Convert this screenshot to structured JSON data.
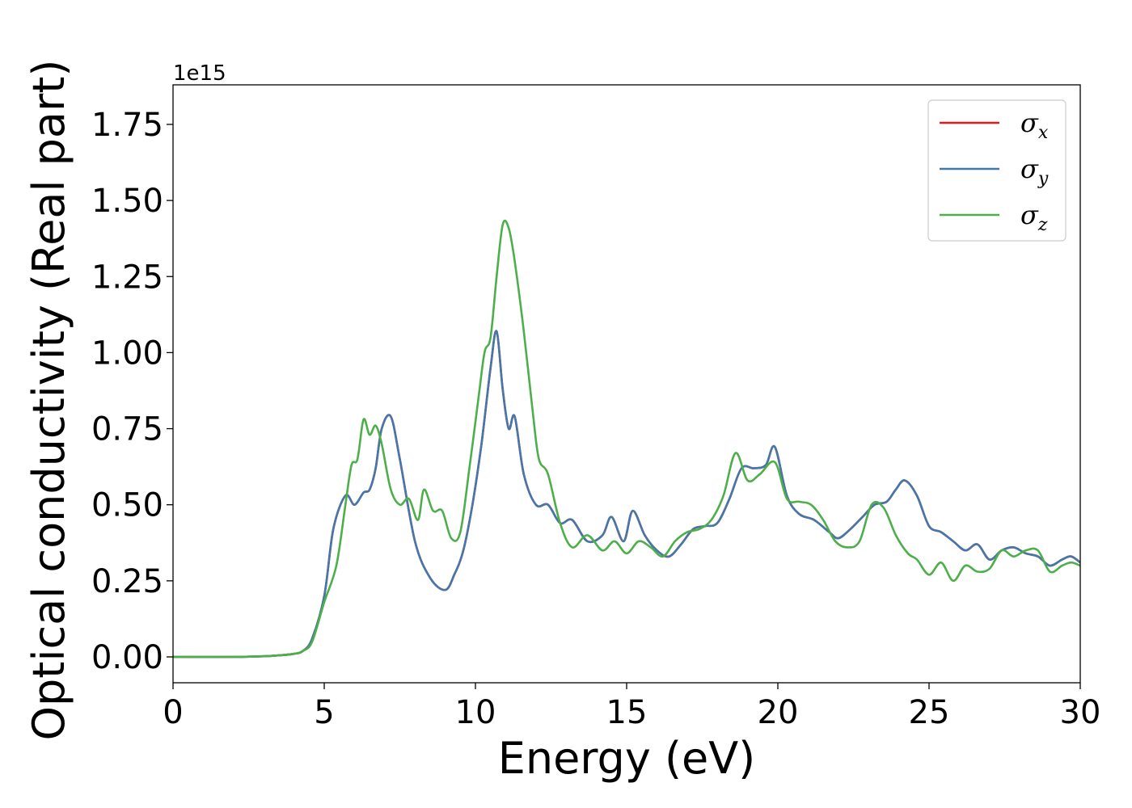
{
  "chart_data": {
    "type": "line",
    "xlabel": "Energy (eV)",
    "ylabel": "Optical conductivity (Real part)",
    "y_offset_label": "1e15",
    "xlim": [
      0,
      30
    ],
    "ylim": [
      -0.085,
      1.88
    ],
    "x_ticks": [
      0,
      5,
      10,
      15,
      20,
      25,
      30
    ],
    "y_ticks": [
      0.0,
      0.25,
      0.5,
      0.75,
      1.0,
      1.25,
      1.5,
      1.75
    ],
    "x_tick_labels": [
      "0",
      "5",
      "10",
      "15",
      "20",
      "25",
      "30"
    ],
    "y_tick_labels": [
      "0.00",
      "0.25",
      "0.50",
      "0.75",
      "1.00",
      "1.25",
      "1.50",
      "1.75"
    ],
    "grid": false,
    "legend_position": "top-right",
    "series": [
      {
        "name": "σx",
        "symbol": "σ",
        "subscript": "x",
        "color": "#e41a1c",
        "x": [
          0,
          2,
          3,
          3.5,
          4,
          4.3,
          4.6,
          5,
          5.3,
          5.7,
          6,
          6.3,
          6.5,
          6.7,
          6.9,
          7.2,
          7.5,
          8,
          8.5,
          9,
          9.3,
          9.6,
          9.9,
          10.2,
          10.5,
          10.7,
          10.9,
          11.1,
          11.3,
          11.6,
          12,
          12.4,
          12.8,
          13.2,
          13.7,
          14.2,
          14.5,
          14.9,
          15.2,
          15.6,
          16,
          16.4,
          16.8,
          17.2,
          17.6,
          18,
          18.4,
          18.8,
          19.2,
          19.6,
          19.9,
          20.3,
          20.7,
          21.2,
          21.7,
          22,
          22.4,
          22.8,
          23.2,
          23.6,
          23.9,
          24.2,
          24.6,
          25,
          25.4,
          25.8,
          26.2,
          26.6,
          27,
          27.4,
          27.8,
          28.2,
          28.6,
          29,
          29.4,
          29.7,
          30
        ],
        "y": [
          0,
          0,
          0.002,
          0.005,
          0.01,
          0.02,
          0.06,
          0.2,
          0.42,
          0.53,
          0.5,
          0.54,
          0.55,
          0.62,
          0.75,
          0.79,
          0.65,
          0.38,
          0.26,
          0.22,
          0.27,
          0.35,
          0.5,
          0.7,
          0.95,
          1.07,
          0.88,
          0.75,
          0.79,
          0.6,
          0.5,
          0.5,
          0.44,
          0.45,
          0.38,
          0.4,
          0.46,
          0.38,
          0.48,
          0.4,
          0.35,
          0.33,
          0.37,
          0.42,
          0.43,
          0.44,
          0.52,
          0.62,
          0.62,
          0.63,
          0.69,
          0.53,
          0.47,
          0.45,
          0.41,
          0.39,
          0.42,
          0.46,
          0.5,
          0.51,
          0.55,
          0.58,
          0.53,
          0.43,
          0.41,
          0.38,
          0.35,
          0.37,
          0.32,
          0.35,
          0.36,
          0.34,
          0.33,
          0.3,
          0.32,
          0.33,
          0.31
        ]
      },
      {
        "name": "σy",
        "symbol": "σ",
        "subscript": "y",
        "color": "#4477aa",
        "x": [
          0,
          2,
          3,
          3.5,
          4,
          4.3,
          4.6,
          5,
          5.3,
          5.7,
          6,
          6.3,
          6.5,
          6.7,
          6.9,
          7.2,
          7.5,
          8,
          8.5,
          9,
          9.3,
          9.6,
          9.9,
          10.2,
          10.5,
          10.7,
          10.9,
          11.1,
          11.3,
          11.6,
          12,
          12.4,
          12.8,
          13.2,
          13.7,
          14.2,
          14.5,
          14.9,
          15.2,
          15.6,
          16,
          16.4,
          16.8,
          17.2,
          17.6,
          18,
          18.4,
          18.8,
          19.2,
          19.6,
          19.9,
          20.3,
          20.7,
          21.2,
          21.7,
          22,
          22.4,
          22.8,
          23.2,
          23.6,
          23.9,
          24.2,
          24.6,
          25,
          25.4,
          25.8,
          26.2,
          26.6,
          27,
          27.4,
          27.8,
          28.2,
          28.6,
          29,
          29.4,
          29.7,
          30
        ],
        "y": [
          0,
          0,
          0.002,
          0.005,
          0.01,
          0.02,
          0.06,
          0.2,
          0.42,
          0.53,
          0.5,
          0.54,
          0.55,
          0.62,
          0.75,
          0.79,
          0.65,
          0.38,
          0.26,
          0.22,
          0.27,
          0.35,
          0.5,
          0.7,
          0.95,
          1.07,
          0.88,
          0.75,
          0.79,
          0.6,
          0.5,
          0.5,
          0.44,
          0.45,
          0.38,
          0.4,
          0.46,
          0.38,
          0.48,
          0.4,
          0.35,
          0.33,
          0.37,
          0.42,
          0.43,
          0.44,
          0.52,
          0.62,
          0.62,
          0.63,
          0.69,
          0.53,
          0.47,
          0.45,
          0.41,
          0.39,
          0.42,
          0.46,
          0.5,
          0.51,
          0.55,
          0.58,
          0.53,
          0.43,
          0.41,
          0.38,
          0.35,
          0.37,
          0.32,
          0.35,
          0.36,
          0.34,
          0.33,
          0.3,
          0.32,
          0.33,
          0.31
        ]
      },
      {
        "name": "σz",
        "symbol": "σ",
        "subscript": "z",
        "color": "#4daf4a",
        "x": [
          0,
          2,
          3,
          3.5,
          4,
          4.3,
          4.6,
          5,
          5.4,
          5.7,
          5.9,
          6.1,
          6.3,
          6.5,
          6.7,
          6.9,
          7.2,
          7.5,
          7.8,
          8.1,
          8.3,
          8.6,
          8.9,
          9.2,
          9.5,
          9.8,
          10.1,
          10.3,
          10.5,
          10.7,
          10.9,
          11.1,
          11.3,
          11.6,
          11.9,
          12.1,
          12.4,
          12.8,
          13.2,
          13.7,
          14.2,
          14.6,
          15,
          15.4,
          15.8,
          16.2,
          16.6,
          17,
          17.4,
          17.8,
          18.2,
          18.6,
          19,
          19.4,
          19.9,
          20.3,
          20.7,
          21.1,
          21.5,
          21.9,
          22.3,
          22.7,
          23.1,
          23.5,
          23.9,
          24.3,
          24.6,
          25,
          25.4,
          25.8,
          26.2,
          26.6,
          27,
          27.4,
          27.8,
          28.2,
          28.6,
          29,
          29.4,
          29.7,
          30
        ],
        "y": [
          0,
          0,
          0.002,
          0.005,
          0.01,
          0.02,
          0.05,
          0.18,
          0.3,
          0.5,
          0.63,
          0.65,
          0.78,
          0.73,
          0.76,
          0.7,
          0.55,
          0.5,
          0.52,
          0.45,
          0.55,
          0.48,
          0.48,
          0.39,
          0.41,
          0.62,
          0.85,
          1.0,
          1.05,
          1.25,
          1.42,
          1.41,
          1.3,
          1.07,
          0.8,
          0.65,
          0.6,
          0.44,
          0.36,
          0.4,
          0.35,
          0.38,
          0.34,
          0.38,
          0.36,
          0.33,
          0.38,
          0.41,
          0.42,
          0.45,
          0.53,
          0.67,
          0.58,
          0.6,
          0.64,
          0.52,
          0.51,
          0.5,
          0.45,
          0.38,
          0.36,
          0.38,
          0.5,
          0.49,
          0.4,
          0.34,
          0.32,
          0.27,
          0.31,
          0.25,
          0.3,
          0.28,
          0.29,
          0.35,
          0.33,
          0.35,
          0.35,
          0.28,
          0.3,
          0.31,
          0.3
        ]
      }
    ]
  }
}
